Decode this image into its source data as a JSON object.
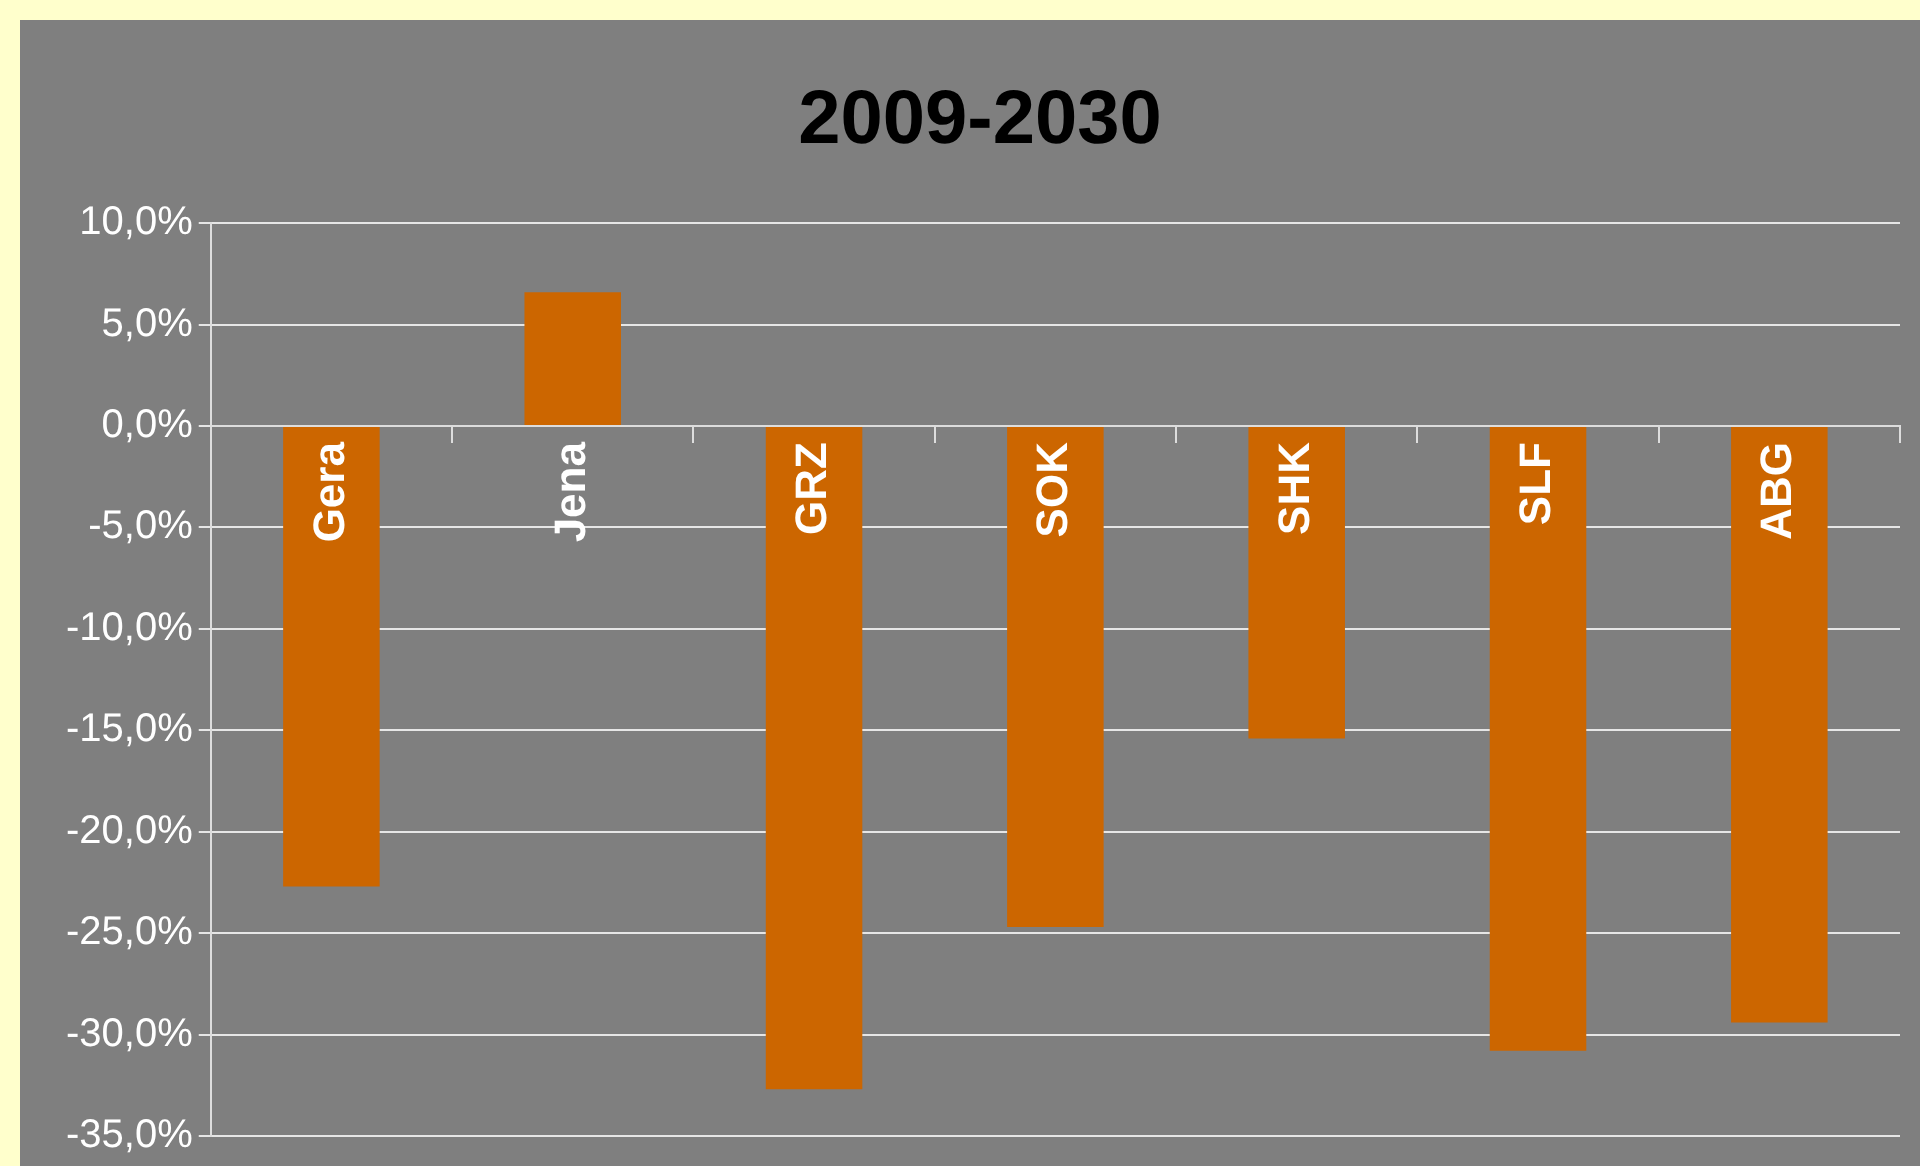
{
  "chart_data": {
    "type": "bar",
    "title": "2009-2030",
    "categories": [
      "Gera",
      "Jena",
      "GRZ",
      "SOK",
      "SHK",
      "SLF",
      "ABG"
    ],
    "values": [
      -22.7,
      6.6,
      -32.7,
      -24.7,
      -15.4,
      -30.8,
      -29.4
    ],
    "color": "#cc6600",
    "ylim": [
      -35,
      10
    ],
    "yticks": [
      {
        "value": 10,
        "label": "10,0%"
      },
      {
        "value": 5,
        "label": "5,0%"
      },
      {
        "value": 0,
        "label": "0,0%"
      },
      {
        "value": -5,
        "label": "-5,0%"
      },
      {
        "value": -10,
        "label": "-10,0%"
      },
      {
        "value": -15,
        "label": "-15,0%"
      },
      {
        "value": -20,
        "label": "-20,0%"
      },
      {
        "value": -25,
        "label": "-25,0%"
      },
      {
        "value": -30,
        "label": "-30,0%"
      },
      {
        "value": -35,
        "label": "-35,0%"
      }
    ],
    "grid": "y"
  }
}
